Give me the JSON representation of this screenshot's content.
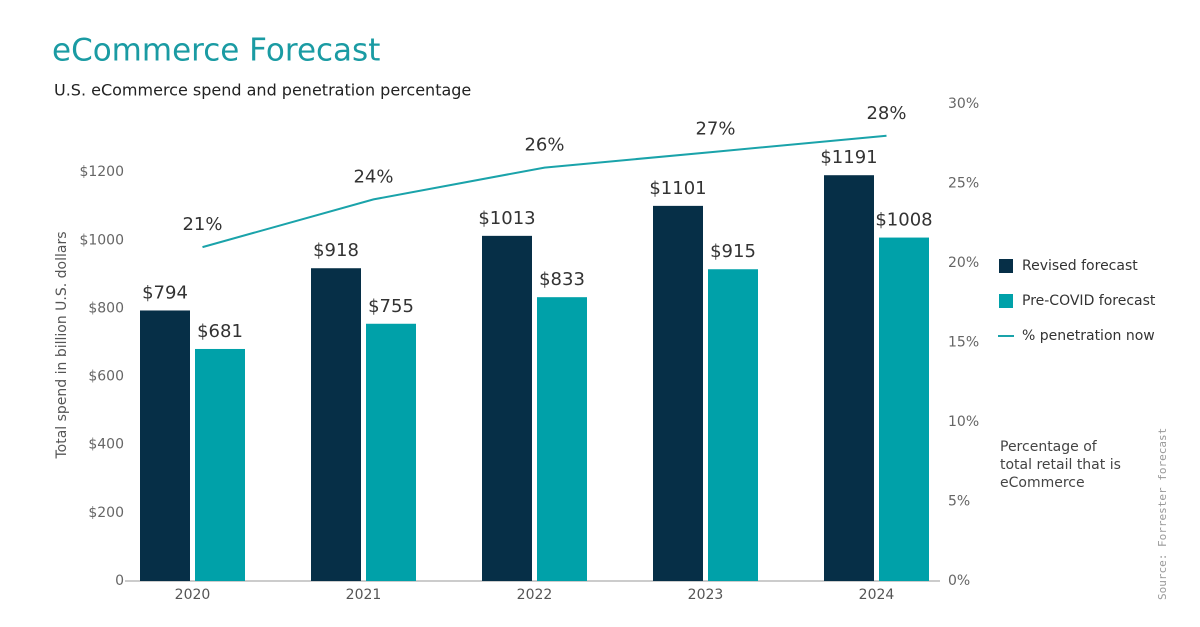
{
  "chart_data": {
    "type": "bar-line",
    "title": "eCommerce Forecast",
    "subtitle": "U.S. eCommerce spend and penetration percentage",
    "ylabel": "Total spend in billion U.S. dollars",
    "annotation": "Percentage of total retail that is eCommerce",
    "source": "Source: Forrester forecast",
    "categories": [
      "2020",
      "2021",
      "2022",
      "2023",
      "2024"
    ],
    "series": [
      {
        "name": "Revised forecast",
        "color": "#062f47",
        "values": [
          794,
          918,
          1013,
          1101,
          1191
        ],
        "value_labels": [
          "$794",
          "$918",
          "$1013",
          "$1101",
          "$1191"
        ]
      },
      {
        "name": "Pre-COVID forecast",
        "color": "#00a1a9",
        "values": [
          681,
          755,
          833,
          915,
          1008
        ],
        "value_labels": [
          "$681",
          "$755",
          "$833",
          "$915",
          "$1008"
        ]
      },
      {
        "name": "% penetration now",
        "color": "#1aa3aa",
        "axis": "y2",
        "values": [
          21,
          24,
          26,
          27,
          28
        ],
        "value_labels": [
          "21%",
          "24%",
          "26%",
          "27%",
          "28%"
        ]
      }
    ],
    "ylim": [
      0,
      1400
    ],
    "yticks": [
      0,
      {
        "value": 200,
        "label": "$200"
      },
      {
        "value": 400,
        "label": "$400"
      },
      {
        "value": 600,
        "label": "$600"
      },
      {
        "value": 800,
        "label": "$800"
      },
      {
        "value": 1000,
        "label": "$1000"
      },
      {
        "value": 1200,
        "label": "$1200"
      }
    ],
    "y2lim": [
      0,
      30
    ],
    "y2ticks": [
      {
        "value": 0,
        "label": "0%"
      },
      {
        "value": 5,
        "label": "5%"
      },
      {
        "value": 10,
        "label": "10%"
      },
      {
        "value": 15,
        "label": "15%"
      },
      {
        "value": 20,
        "label": "20%"
      },
      {
        "value": 25,
        "label": "25%"
      },
      {
        "value": 30,
        "label": "30%"
      }
    ],
    "legend": "right"
  }
}
